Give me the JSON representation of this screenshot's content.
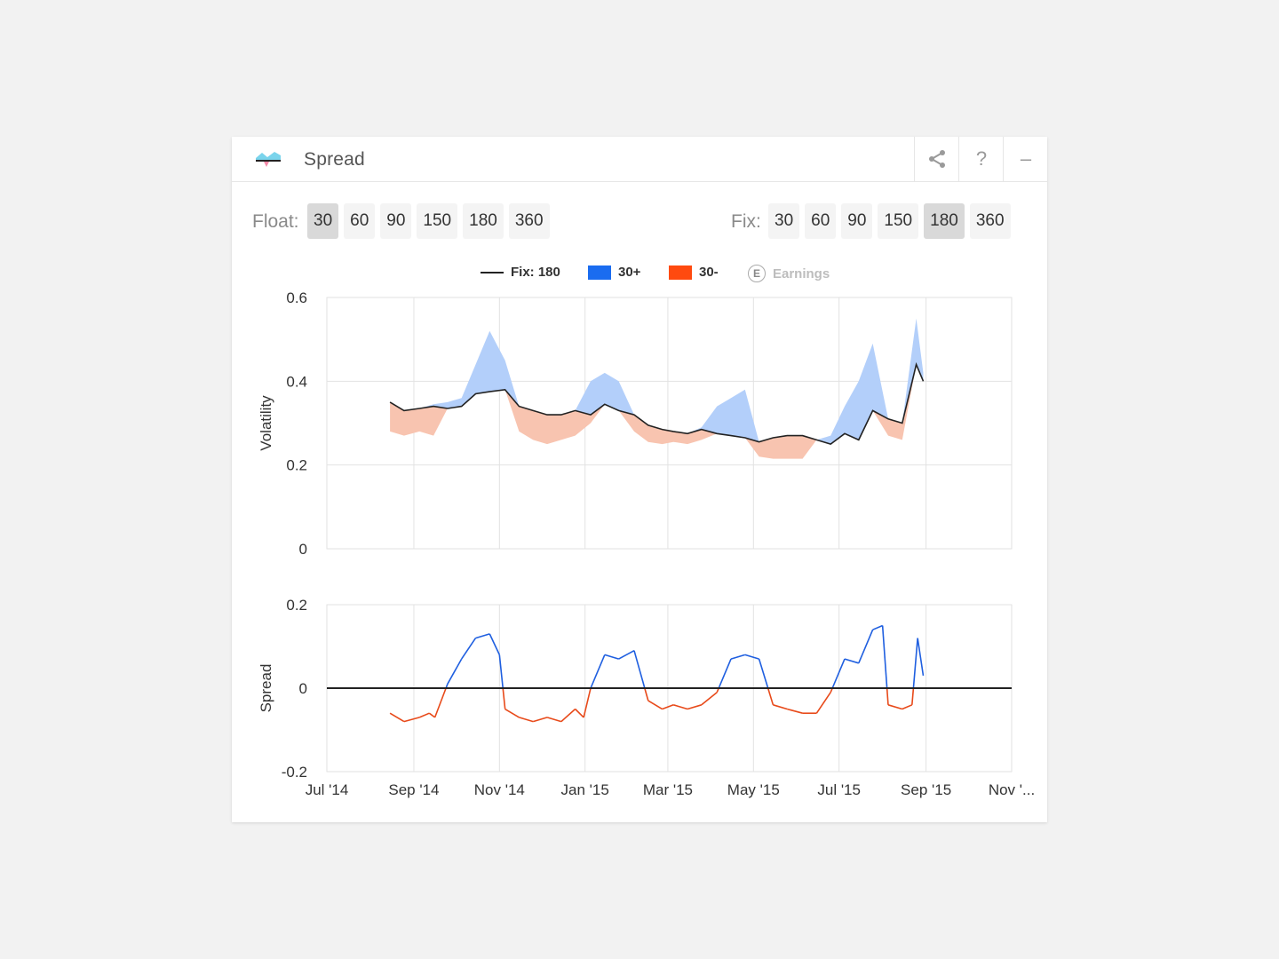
{
  "widget": {
    "title": "Spread",
    "buttons": {
      "share_icon": "share-icon",
      "help": "?",
      "minimize": "–"
    }
  },
  "float_selector": {
    "label": "Float:",
    "options": [
      "30",
      "60",
      "90",
      "150",
      "180",
      "360"
    ],
    "selected": "30"
  },
  "fix_selector": {
    "label": "Fix:",
    "options": [
      "30",
      "60",
      "90",
      "150",
      "180",
      "360"
    ],
    "selected": "180"
  },
  "legend": {
    "fix": "Fix: 180",
    "plus": "30+",
    "minus": "30-",
    "earnings_icon": "E",
    "earnings": "Earnings"
  },
  "colors": {
    "fix_line": "#222222",
    "plus_fill": "#b3cffa",
    "plus_line": "#1f5fe0",
    "plus_legend": "#1a6cf0",
    "minus_fill": "#f8c4b0",
    "minus_line": "#e84a1a",
    "minus_legend": "#ff4a0f"
  },
  "chart_data": [
    {
      "type": "area",
      "ylabel": "Volatility",
      "ylim": [
        0,
        0.6
      ],
      "yticks": [
        "0.6",
        "0.4",
        "0.2",
        "0"
      ],
      "x_ticks": [
        "Jul '14",
        "Sep '14",
        "Nov '14",
        "Jan '15",
        "Mar '15",
        "May '15",
        "Jul '15",
        "Sep '15",
        "Nov '..."
      ],
      "grid": true,
      "x": [
        "2014-08-15",
        "2014-08-25",
        "2014-09-05",
        "2014-09-15",
        "2014-09-25",
        "2014-10-05",
        "2014-10-15",
        "2014-10-25",
        "2014-11-05",
        "2014-11-15",
        "2014-11-25",
        "2014-12-05",
        "2014-12-15",
        "2014-12-25",
        "2015-01-05",
        "2015-01-15",
        "2015-01-25",
        "2015-02-05",
        "2015-02-15",
        "2015-02-25",
        "2015-03-05",
        "2015-03-15",
        "2015-03-25",
        "2015-04-05",
        "2015-04-15",
        "2015-04-25",
        "2015-05-05",
        "2015-05-15",
        "2015-05-25",
        "2015-06-05",
        "2015-06-15",
        "2015-06-25",
        "2015-07-05",
        "2015-07-15",
        "2015-07-25",
        "2015-08-05",
        "2015-08-15",
        "2015-08-25",
        "2015-08-30"
      ],
      "series": [
        {
          "name": "Fix: 180",
          "values": [
            0.35,
            0.33,
            0.335,
            0.34,
            0.335,
            0.34,
            0.37,
            0.375,
            0.38,
            0.34,
            0.33,
            0.32,
            0.32,
            0.33,
            0.32,
            0.345,
            0.33,
            0.32,
            0.295,
            0.285,
            0.28,
            0.275,
            0.285,
            0.275,
            0.27,
            0.265,
            0.255,
            0.265,
            0.27,
            0.27,
            0.26,
            0.25,
            0.275,
            0.26,
            0.33,
            0.31,
            0.3,
            0.44,
            0.4
          ]
        },
        {
          "name": "30+",
          "values": [
            0.35,
            0.33,
            0.335,
            0.345,
            0.35,
            0.36,
            0.44,
            0.52,
            0.45,
            0.34,
            0.33,
            0.32,
            0.32,
            0.33,
            0.4,
            0.42,
            0.4,
            0.32,
            0.295,
            0.285,
            0.28,
            0.275,
            0.29,
            0.34,
            0.36,
            0.38,
            0.255,
            0.265,
            0.27,
            0.27,
            0.26,
            0.27,
            0.34,
            0.4,
            0.49,
            0.31,
            0.3,
            0.55,
            0.42
          ]
        },
        {
          "name": "30-",
          "values": [
            0.28,
            0.27,
            0.28,
            0.27,
            0.335,
            0.34,
            0.37,
            0.375,
            0.38,
            0.28,
            0.26,
            0.25,
            0.26,
            0.27,
            0.3,
            0.345,
            0.33,
            0.28,
            0.255,
            0.25,
            0.255,
            0.25,
            0.26,
            0.275,
            0.27,
            0.265,
            0.22,
            0.215,
            0.215,
            0.215,
            0.26,
            0.25,
            0.275,
            0.26,
            0.33,
            0.27,
            0.26,
            0.44,
            0.4
          ]
        }
      ]
    },
    {
      "type": "line",
      "ylabel": "Spread",
      "ylim": [
        -0.2,
        0.2
      ],
      "yticks": [
        "0.2",
        "0",
        "-0.2"
      ],
      "x_ticks": [
        "Jul '14",
        "Sep '14",
        "Nov '14",
        "Jan '15",
        "Mar '15",
        "May '15",
        "Jul '15",
        "Sep '15",
        "Nov '..."
      ],
      "grid": true,
      "x": [
        "2014-08-15",
        "2014-08-25",
        "2014-09-05",
        "2014-09-12",
        "2014-09-16",
        "2014-09-25",
        "2014-10-05",
        "2014-10-15",
        "2014-10-25",
        "2014-11-01",
        "2014-11-05",
        "2014-11-15",
        "2014-11-25",
        "2014-12-05",
        "2014-12-15",
        "2014-12-25",
        "2014-12-31",
        "2015-01-05",
        "2015-01-15",
        "2015-01-25",
        "2015-02-05",
        "2015-02-15",
        "2015-02-25",
        "2015-03-05",
        "2015-03-15",
        "2015-03-25",
        "2015-04-05",
        "2015-04-15",
        "2015-04-25",
        "2015-05-05",
        "2015-05-15",
        "2015-05-25",
        "2015-06-05",
        "2015-06-15",
        "2015-06-25",
        "2015-07-05",
        "2015-07-15",
        "2015-07-25",
        "2015-08-01",
        "2015-08-05",
        "2015-08-15",
        "2015-08-22",
        "2015-08-26",
        "2015-08-30"
      ],
      "values": [
        -0.06,
        -0.08,
        -0.07,
        -0.06,
        -0.07,
        0.01,
        0.07,
        0.12,
        0.13,
        0.08,
        -0.05,
        -0.07,
        -0.08,
        -0.07,
        -0.08,
        -0.05,
        -0.07,
        0.0,
        0.08,
        0.07,
        0.09,
        -0.03,
        -0.05,
        -0.04,
        -0.05,
        -0.04,
        -0.01,
        0.07,
        0.08,
        0.07,
        -0.04,
        -0.05,
        -0.06,
        -0.06,
        -0.01,
        0.07,
        0.06,
        0.14,
        0.15,
        -0.04,
        -0.05,
        -0.04,
        0.12,
        0.03
      ]
    }
  ]
}
